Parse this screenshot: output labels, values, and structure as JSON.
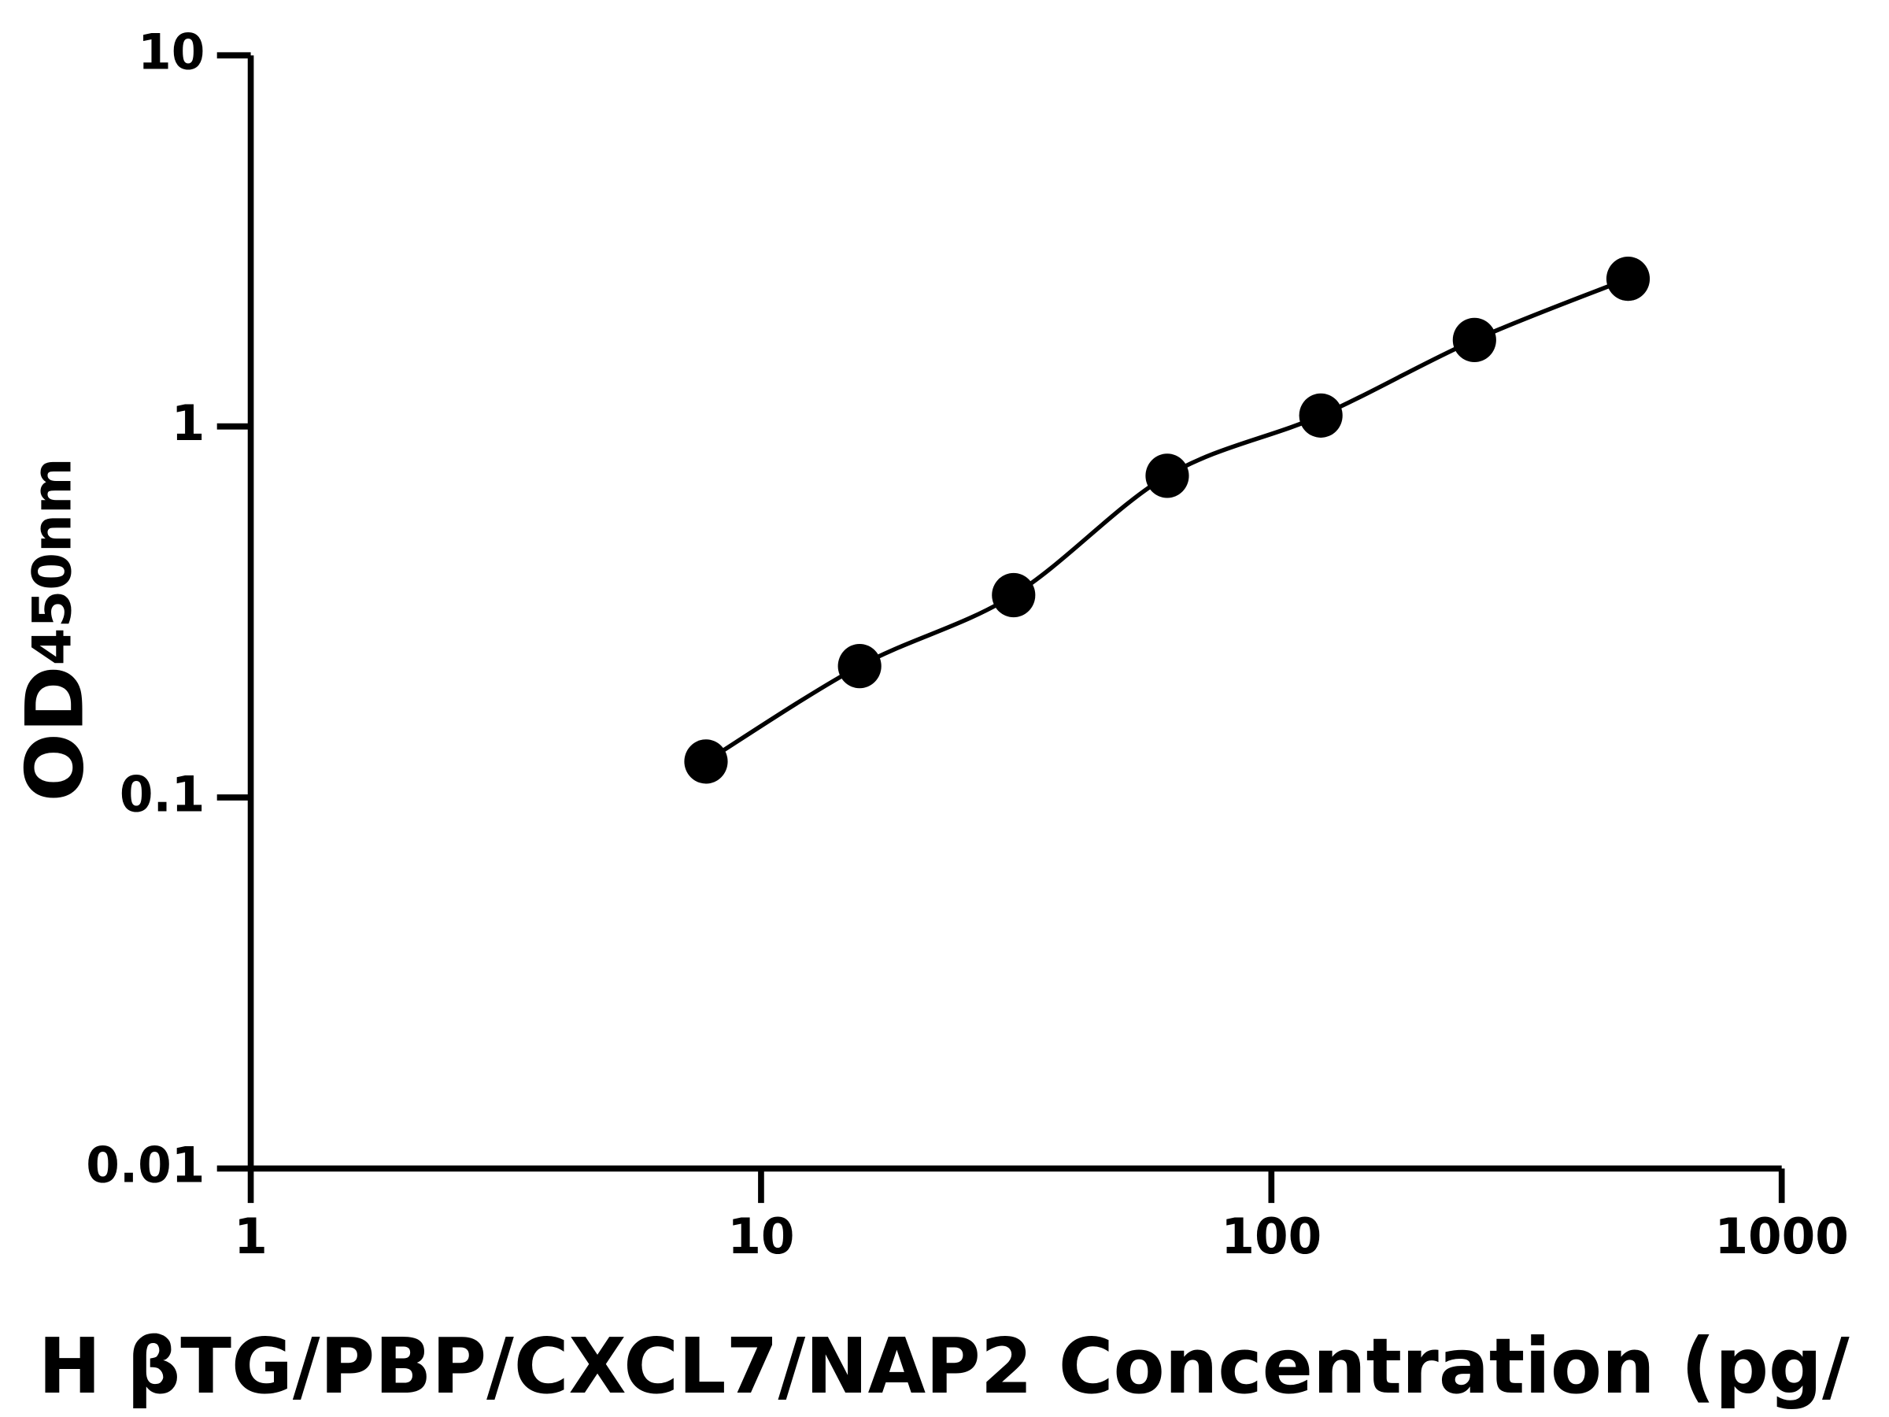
{
  "chart_data": {
    "type": "scatter",
    "x_label": "H βTG/PBP/CXCL7/NAP2 Concentration (pg/",
    "y_label": "OD",
    "y_label_sub": "450nm",
    "x": [
      7.8,
      15.6,
      31.25,
      62.5,
      125,
      250,
      500
    ],
    "values": [
      0.125,
      0.226,
      0.351,
      0.736,
      1.07,
      1.71,
      2.5
    ],
    "color": "#000000",
    "xscale": "log",
    "yscale": "log",
    "xlim": [
      1,
      1000
    ],
    "ylim": [
      0.01,
      10
    ],
    "xticks": [
      1,
      10,
      100,
      1000
    ],
    "yticks": [
      0.01,
      0.1,
      1,
      10
    ],
    "fit_line": true,
    "grid": false
  }
}
